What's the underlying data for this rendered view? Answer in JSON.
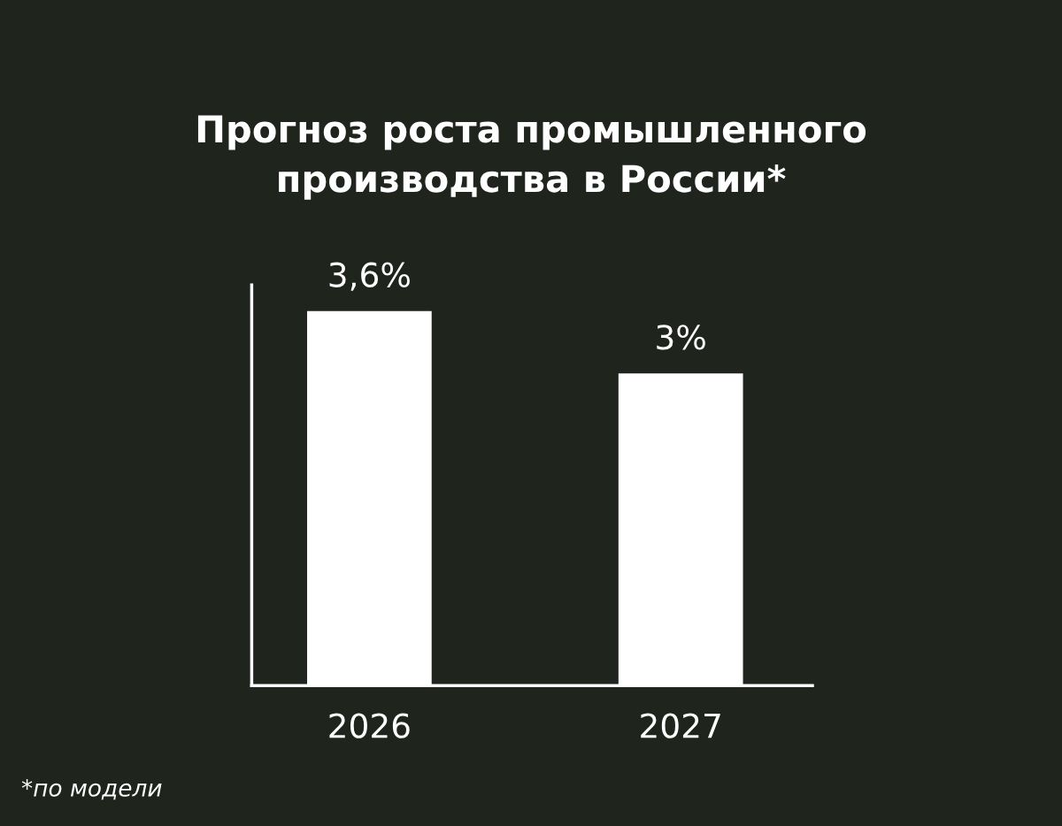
{
  "chart_data": {
    "type": "bar",
    "title": "Прогноз роста промышленного\nпроизводства в России*",
    "categories": [
      "2026",
      "2027"
    ],
    "values": [
      3.6,
      3
    ],
    "value_labels": [
      "3,6%",
      "3%"
    ],
    "color": "#ffffff",
    "ylim": [
      0,
      3.85
    ],
    "tick_labels": "x",
    "grid": false,
    "annotations": [
      "*по модели"
    ]
  }
}
